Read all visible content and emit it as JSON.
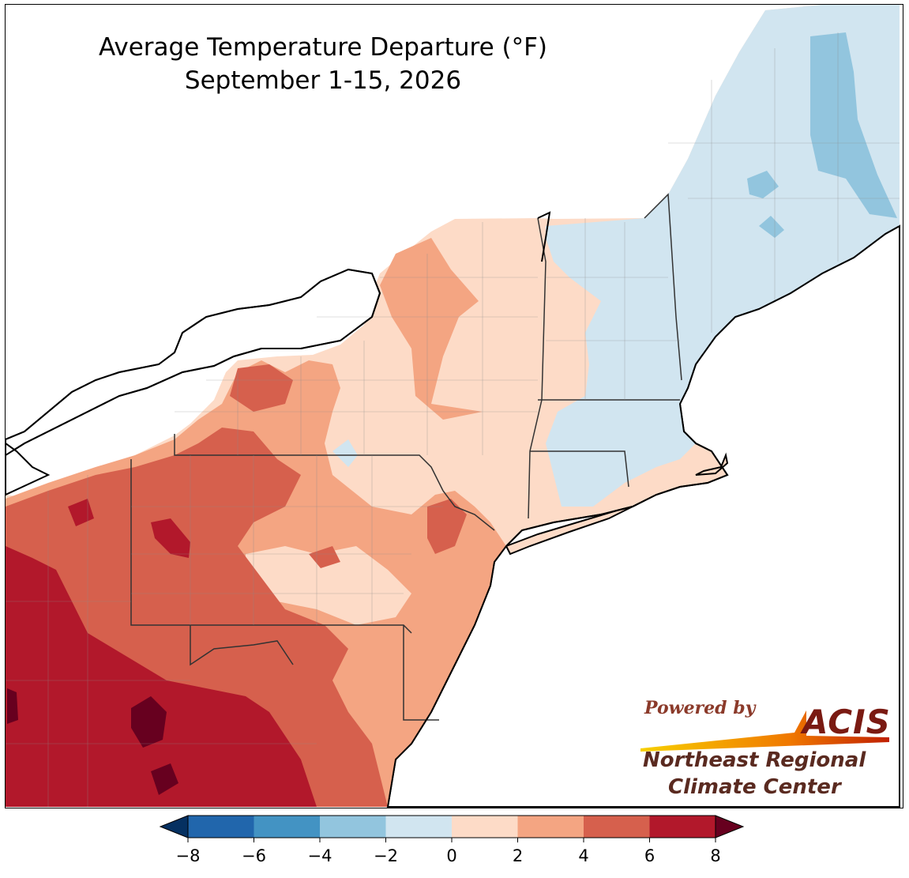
{
  "title": {
    "line1": "Average Temperature Departure (°F)",
    "line2": "September 1-15, 2026"
  },
  "logo": {
    "powered_by": "Powered by",
    "acis": "ACIS",
    "org_line1": "Northeast Regional",
    "org_line2": "Climate Center"
  },
  "colorbar": {
    "bins": [
      {
        "from": -8,
        "to": -6,
        "color": "#2166ac"
      },
      {
        "from": -6,
        "to": -4,
        "color": "#4393c3"
      },
      {
        "from": -4,
        "to": -2,
        "color": "#92c5de"
      },
      {
        "from": -2,
        "to": 0,
        "color": "#d1e5f0"
      },
      {
        "from": 0,
        "to": 2,
        "color": "#fddbc7"
      },
      {
        "from": 2,
        "to": 4,
        "color": "#f4a582"
      },
      {
        "from": 4,
        "to": 6,
        "color": "#d6604d"
      },
      {
        "from": 6,
        "to": 8,
        "color": "#b2182b"
      }
    ],
    "under_color": "#053061",
    "over_color": "#67001f",
    "ticks": [
      "−8",
      "−6",
      "−4",
      "−2",
      "0",
      "2",
      "4",
      "6",
      "8"
    ]
  },
  "colors": {
    "coast": "#000000",
    "state_border": "#333333",
    "county_border": "#8a8a8a",
    "water": "#ffffff"
  }
}
